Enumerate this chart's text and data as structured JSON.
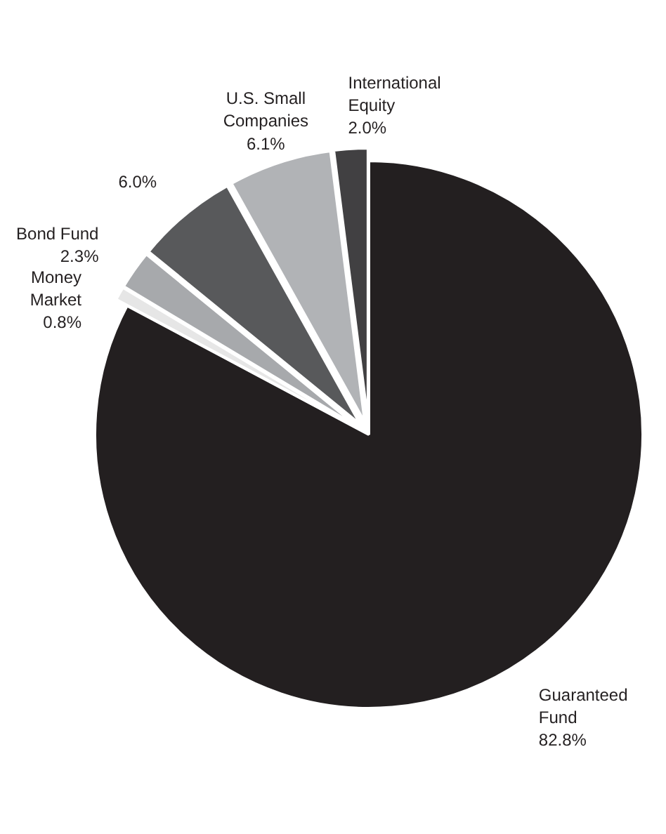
{
  "chart_data": {
    "type": "pie",
    "categories": [
      "Guaranteed Fund",
      "Money Market",
      "Bond Fund",
      null,
      "U.S. Small Companies",
      "International Equity"
    ],
    "values": [
      82.8,
      0.8,
      2.3,
      6.0,
      6.1,
      2.0
    ],
    "colors": [
      "#231f20",
      "#e6e6e6",
      "#a7a9ac",
      "#58595b",
      "#b1b3b6",
      "#414042"
    ],
    "value_labels": [
      "82.8%",
      "0.8%",
      "2.3%",
      "6.0%",
      "6.1%",
      "2.0%"
    ]
  }
}
